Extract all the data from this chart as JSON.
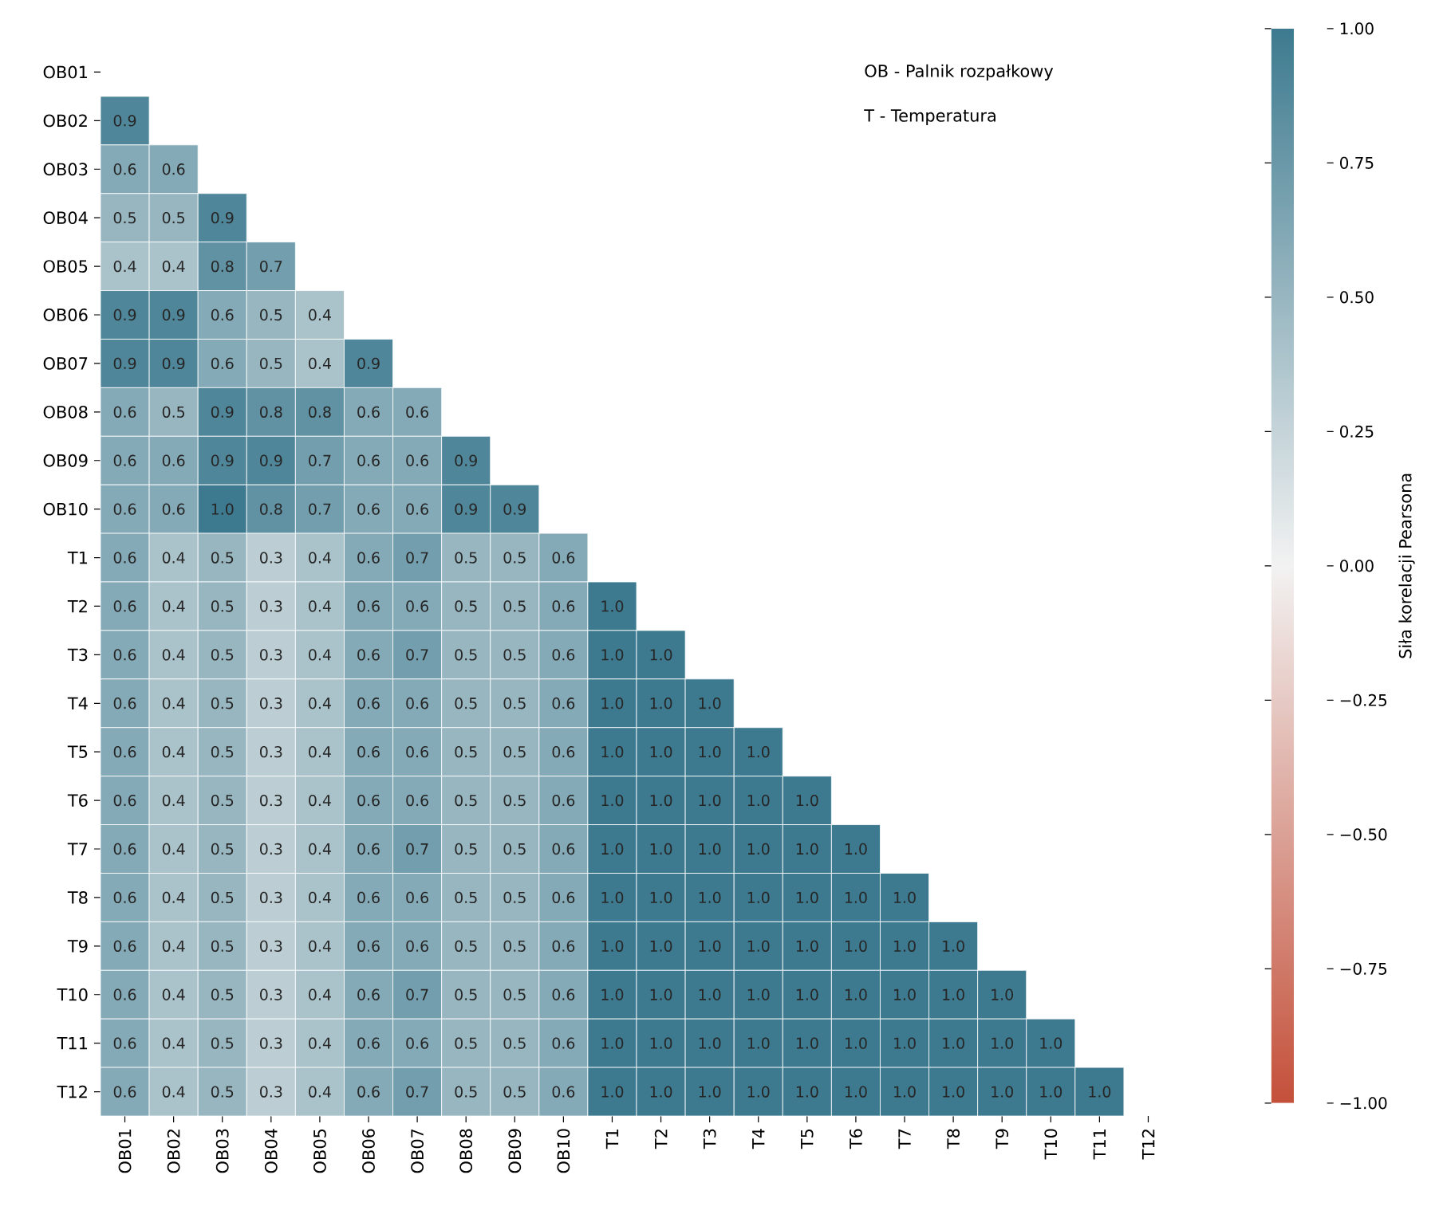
{
  "chart_data": {
    "type": "heatmap",
    "clabel": "Siła korelacji Pearsona",
    "annotations": [
      "OB - Palnik rozpałkowy",
      "T - Temperatura"
    ],
    "categories": [
      "OB01",
      "OB02",
      "OB03",
      "OB04",
      "OB05",
      "OB06",
      "OB07",
      "OB08",
      "OB09",
      "OB10",
      "T1",
      "T2",
      "T3",
      "T4",
      "T5",
      "T6",
      "T7",
      "T8",
      "T9",
      "T10",
      "T11",
      "T12"
    ],
    "y_categories": [
      "OB01",
      "OB02",
      "OB03",
      "OB04",
      "OB05",
      "OB06",
      "OB07",
      "OB08",
      "OB09",
      "OB10",
      "T1",
      "T2",
      "T3",
      "T4",
      "T5",
      "T6",
      "T7",
      "T8",
      "T9",
      "T10",
      "T11",
      "T12"
    ],
    "cells": [
      [
        null,
        null,
        null,
        null,
        null,
        null,
        null,
        null,
        null,
        null,
        null,
        null,
        null,
        null,
        null,
        null,
        null,
        null,
        null,
        null,
        null,
        null
      ],
      [
        0.9,
        null,
        null,
        null,
        null,
        null,
        null,
        null,
        null,
        null,
        null,
        null,
        null,
        null,
        null,
        null,
        null,
        null,
        null,
        null,
        null,
        null
      ],
      [
        0.6,
        0.6,
        null,
        null,
        null,
        null,
        null,
        null,
        null,
        null,
        null,
        null,
        null,
        null,
        null,
        null,
        null,
        null,
        null,
        null,
        null,
        null
      ],
      [
        0.5,
        0.5,
        0.9,
        null,
        null,
        null,
        null,
        null,
        null,
        null,
        null,
        null,
        null,
        null,
        null,
        null,
        null,
        null,
        null,
        null,
        null,
        null
      ],
      [
        0.4,
        0.4,
        0.8,
        0.7,
        null,
        null,
        null,
        null,
        null,
        null,
        null,
        null,
        null,
        null,
        null,
        null,
        null,
        null,
        null,
        null,
        null,
        null
      ],
      [
        0.9,
        0.9,
        0.6,
        0.5,
        0.4,
        null,
        null,
        null,
        null,
        null,
        null,
        null,
        null,
        null,
        null,
        null,
        null,
        null,
        null,
        null,
        null,
        null
      ],
      [
        0.9,
        0.9,
        0.6,
        0.5,
        0.4,
        0.9,
        null,
        null,
        null,
        null,
        null,
        null,
        null,
        null,
        null,
        null,
        null,
        null,
        null,
        null,
        null,
        null
      ],
      [
        0.6,
        0.5,
        0.9,
        0.8,
        0.8,
        0.6,
        0.6,
        null,
        null,
        null,
        null,
        null,
        null,
        null,
        null,
        null,
        null,
        null,
        null,
        null,
        null,
        null
      ],
      [
        0.6,
        0.6,
        0.9,
        0.9,
        0.7,
        0.6,
        0.6,
        0.9,
        null,
        null,
        null,
        null,
        null,
        null,
        null,
        null,
        null,
        null,
        null,
        null,
        null,
        null
      ],
      [
        0.6,
        0.6,
        1.0,
        0.8,
        0.7,
        0.6,
        0.6,
        0.9,
        0.9,
        null,
        null,
        null,
        null,
        null,
        null,
        null,
        null,
        null,
        null,
        null,
        null,
        null
      ],
      [
        0.6,
        0.4,
        0.5,
        0.3,
        0.4,
        0.6,
        0.7,
        0.5,
        0.5,
        0.6,
        null,
        null,
        null,
        null,
        null,
        null,
        null,
        null,
        null,
        null,
        null,
        null
      ],
      [
        0.6,
        0.4,
        0.5,
        0.3,
        0.4,
        0.6,
        0.6,
        0.5,
        0.5,
        0.6,
        1.0,
        null,
        null,
        null,
        null,
        null,
        null,
        null,
        null,
        null,
        null,
        null
      ],
      [
        0.6,
        0.4,
        0.5,
        0.3,
        0.4,
        0.6,
        0.7,
        0.5,
        0.5,
        0.6,
        1.0,
        1.0,
        null,
        null,
        null,
        null,
        null,
        null,
        null,
        null,
        null,
        null
      ],
      [
        0.6,
        0.4,
        0.5,
        0.3,
        0.4,
        0.6,
        0.6,
        0.5,
        0.5,
        0.6,
        1.0,
        1.0,
        1.0,
        null,
        null,
        null,
        null,
        null,
        null,
        null,
        null,
        null
      ],
      [
        0.6,
        0.4,
        0.5,
        0.3,
        0.4,
        0.6,
        0.6,
        0.5,
        0.5,
        0.6,
        1.0,
        1.0,
        1.0,
        1.0,
        null,
        null,
        null,
        null,
        null,
        null,
        null,
        null
      ],
      [
        0.6,
        0.4,
        0.5,
        0.3,
        0.4,
        0.6,
        0.6,
        0.5,
        0.5,
        0.6,
        1.0,
        1.0,
        1.0,
        1.0,
        1.0,
        null,
        null,
        null,
        null,
        null,
        null,
        null
      ],
      [
        0.6,
        0.4,
        0.5,
        0.3,
        0.4,
        0.6,
        0.7,
        0.5,
        0.5,
        0.6,
        1.0,
        1.0,
        1.0,
        1.0,
        1.0,
        1.0,
        null,
        null,
        null,
        null,
        null,
        null
      ],
      [
        0.6,
        0.4,
        0.5,
        0.3,
        0.4,
        0.6,
        0.6,
        0.5,
        0.5,
        0.6,
        1.0,
        1.0,
        1.0,
        1.0,
        1.0,
        1.0,
        1.0,
        null,
        null,
        null,
        null,
        null
      ],
      [
        0.6,
        0.4,
        0.5,
        0.3,
        0.4,
        0.6,
        0.6,
        0.5,
        0.5,
        0.6,
        1.0,
        1.0,
        1.0,
        1.0,
        1.0,
        1.0,
        1.0,
        1.0,
        null,
        null,
        null,
        null
      ],
      [
        0.6,
        0.4,
        0.5,
        0.3,
        0.4,
        0.6,
        0.7,
        0.5,
        0.5,
        0.6,
        1.0,
        1.0,
        1.0,
        1.0,
        1.0,
        1.0,
        1.0,
        1.0,
        1.0,
        null,
        null,
        null
      ],
      [
        0.6,
        0.4,
        0.5,
        0.3,
        0.4,
        0.6,
        0.6,
        0.5,
        0.5,
        0.6,
        1.0,
        1.0,
        1.0,
        1.0,
        1.0,
        1.0,
        1.0,
        1.0,
        1.0,
        1.0,
        null,
        null
      ],
      [
        0.6,
        0.4,
        0.5,
        0.3,
        0.4,
        0.6,
        0.7,
        0.5,
        0.5,
        0.6,
        1.0,
        1.0,
        1.0,
        1.0,
        1.0,
        1.0,
        1.0,
        1.0,
        1.0,
        1.0,
        1.0,
        null
      ]
    ],
    "cell_labels": [
      [
        null,
        null,
        null,
        null,
        null,
        null,
        null,
        null,
        null,
        null,
        null,
        null,
        null,
        null,
        null,
        null,
        null,
        null,
        null,
        null,
        null,
        null
      ],
      [
        "0.9",
        null,
        null,
        null,
        null,
        null,
        null,
        null,
        null,
        null,
        null,
        null,
        null,
        null,
        null,
        null,
        null,
        null,
        null,
        null,
        null,
        null
      ],
      [
        "0.6",
        "0.6",
        null,
        null,
        null,
        null,
        null,
        null,
        null,
        null,
        null,
        null,
        null,
        null,
        null,
        null,
        null,
        null,
        null,
        null,
        null,
        null
      ],
      [
        "0.5",
        "0.5",
        "0.9",
        null,
        null,
        null,
        null,
        null,
        null,
        null,
        null,
        null,
        null,
        null,
        null,
        null,
        null,
        null,
        null,
        null,
        null,
        null
      ],
      [
        "0.4",
        "0.4",
        "0.8",
        "0.7",
        null,
        null,
        null,
        null,
        null,
        null,
        null,
        null,
        null,
        null,
        null,
        null,
        null,
        null,
        null,
        null,
        null,
        null
      ],
      [
        "0.9",
        "0.9",
        "0.6",
        "0.5",
        "0.4",
        null,
        null,
        null,
        null,
        null,
        null,
        null,
        null,
        null,
        null,
        null,
        null,
        null,
        null,
        null,
        null,
        null
      ],
      [
        "0.9",
        "0.9",
        "0.6",
        "0.5",
        "0.4",
        "0.9",
        null,
        null,
        null,
        null,
        null,
        null,
        null,
        null,
        null,
        null,
        null,
        null,
        null,
        null,
        null,
        null
      ],
      [
        "0.6",
        "0.5",
        "0.9",
        "0.8",
        "0.8",
        "0.6",
        "0.6",
        null,
        null,
        null,
        null,
        null,
        null,
        null,
        null,
        null,
        null,
        null,
        null,
        null,
        null,
        null
      ],
      [
        "0.6",
        "0.6",
        "0.9",
        "0.9",
        "0.7",
        "0.6",
        "0.6",
        "0.9",
        null,
        null,
        null,
        null,
        null,
        null,
        null,
        null,
        null,
        null,
        null,
        null,
        null,
        null
      ],
      [
        "0.6",
        "0.6",
        "1.0",
        "0.8",
        "0.7",
        "0.6",
        "0.6",
        "0.9",
        "0.9",
        null,
        null,
        null,
        null,
        null,
        null,
        null,
        null,
        null,
        null,
        null,
        null,
        null
      ],
      [
        "0.6",
        "0.4",
        "0.5",
        "0.3",
        "0.4",
        "0.6",
        "0.7",
        "0.5",
        "0.5",
        "0.6",
        null,
        null,
        null,
        null,
        null,
        null,
        null,
        null,
        null,
        null,
        null,
        null
      ],
      [
        "0.6",
        "0.4",
        "0.5",
        "0.3",
        "0.4",
        "0.6",
        "0.6",
        "0.5",
        "0.5",
        "0.6",
        "1.0",
        null,
        null,
        null,
        null,
        null,
        null,
        null,
        null,
        null,
        null,
        null
      ],
      [
        "0.6",
        "0.4",
        "0.5",
        "0.3",
        "0.4",
        "0.6",
        "0.7",
        "0.5",
        "0.5",
        "0.6",
        "1.0",
        "1.0",
        null,
        null,
        null,
        null,
        null,
        null,
        null,
        null,
        null,
        null
      ],
      [
        "0.6",
        "0.4",
        "0.5",
        "0.3",
        "0.4",
        "0.6",
        "0.6",
        "0.5",
        "0.5",
        "0.6",
        "1.0",
        "1.0",
        "1.0",
        null,
        null,
        null,
        null,
        null,
        null,
        null,
        null,
        null
      ],
      [
        "0.6",
        "0.4",
        "0.5",
        "0.3",
        "0.4",
        "0.6",
        "0.6",
        "0.5",
        "0.5",
        "0.6",
        "1.0",
        "1.0",
        "1.0",
        "1.0",
        null,
        null,
        null,
        null,
        null,
        null,
        null,
        null
      ],
      [
        "0.6",
        "0.4",
        "0.5",
        "0.3",
        "0.4",
        "0.6",
        "0.6",
        "0.5",
        "0.5",
        "0.6",
        "1.0",
        "1.0",
        "1.0",
        "1.0",
        "1.0",
        null,
        null,
        null,
        null,
        null,
        null,
        null
      ],
      [
        "0.6",
        "0.4",
        "0.5",
        "0.3",
        "0.4",
        "0.6",
        "0.7",
        "0.5",
        "0.5",
        "0.6",
        "1.0",
        "1.0",
        "1.0",
        "1.0",
        "1.0",
        "1.0",
        null,
        null,
        null,
        null,
        null,
        null
      ],
      [
        "0.6",
        "0.4",
        "0.5",
        "0.3",
        "0.4",
        "0.6",
        "0.6",
        "0.5",
        "0.5",
        "0.6",
        "1.0",
        "1.0",
        "1.0",
        "1.0",
        "1.0",
        "1.0",
        "1.0",
        null,
        null,
        null,
        null,
        null
      ],
      [
        "0.6",
        "0.4",
        "0.5",
        "0.3",
        "0.4",
        "0.6",
        "0.6",
        "0.5",
        "0.5",
        "0.6",
        "1.0",
        "1.0",
        "1.0",
        "1.0",
        "1.0",
        "1.0",
        "1.0",
        "1.0",
        null,
        null,
        null,
        null
      ],
      [
        "0.6",
        "0.4",
        "0.5",
        "0.3",
        "0.4",
        "0.6",
        "0.7",
        "0.5",
        "0.5",
        "0.6",
        "1.0",
        "1.0",
        "1.0",
        "1.0",
        "1.0",
        "1.0",
        "1.0",
        "1.0",
        "1.0",
        null,
        null,
        null
      ],
      [
        "0.6",
        "0.4",
        "0.5",
        "0.3",
        "0.4",
        "0.6",
        "0.6",
        "0.5",
        "0.5",
        "0.6",
        "1.0",
        "1.0",
        "1.0",
        "1.0",
        "1.0",
        "1.0",
        "1.0",
        "1.0",
        "1.0",
        "1.0",
        null,
        null
      ],
      [
        "0.6",
        "0.4",
        "0.5",
        "0.3",
        "0.4",
        "0.6",
        "0.7",
        "0.5",
        "0.5",
        "0.6",
        "1.0",
        "1.0",
        "1.0",
        "1.0",
        "1.0",
        "1.0",
        "1.0",
        "1.0",
        "1.0",
        "1.0",
        "1.0",
        null
      ]
    ],
    "data_labels": true,
    "clim": [
      -1,
      1
    ],
    "cticks": [
      {
        "value": -1,
        "label": "−1.00"
      },
      {
        "value": -0.75,
        "label": "−0.75"
      },
      {
        "value": -0.5,
        "label": "−0.50"
      },
      {
        "value": -0.25,
        "label": "−0.25"
      },
      {
        "value": 0,
        "label": "0.00"
      },
      {
        "value": 0.25,
        "label": "0.25"
      },
      {
        "value": 0.5,
        "label": "0.50"
      },
      {
        "value": 0.75,
        "label": "0.75"
      },
      {
        "value": 1,
        "label": "1.00"
      }
    ]
  }
}
